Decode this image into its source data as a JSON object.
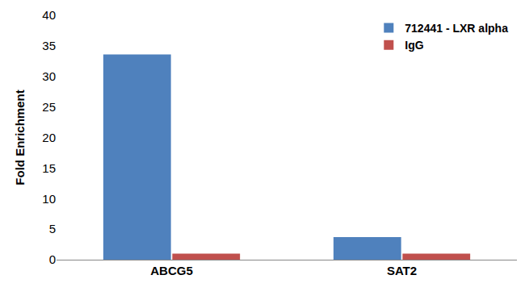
{
  "chart_data": {
    "type": "bar",
    "y_label": "Fold Enrichment",
    "categories": [
      "ABCG5",
      "SAT2"
    ],
    "series": [
      {
        "name": "712441 - LXR alpha",
        "color": "#4f81bd",
        "values": [
          33.6,
          3.7
        ]
      },
      {
        "name": "IgG",
        "color": "#c0504d",
        "values": [
          1,
          1
        ]
      }
    ],
    "ylim": [
      0,
      40
    ],
    "yticks": [
      0,
      5,
      10,
      15,
      20,
      25,
      30,
      35,
      40
    ],
    "grid": false,
    "legend": "top-right"
  }
}
